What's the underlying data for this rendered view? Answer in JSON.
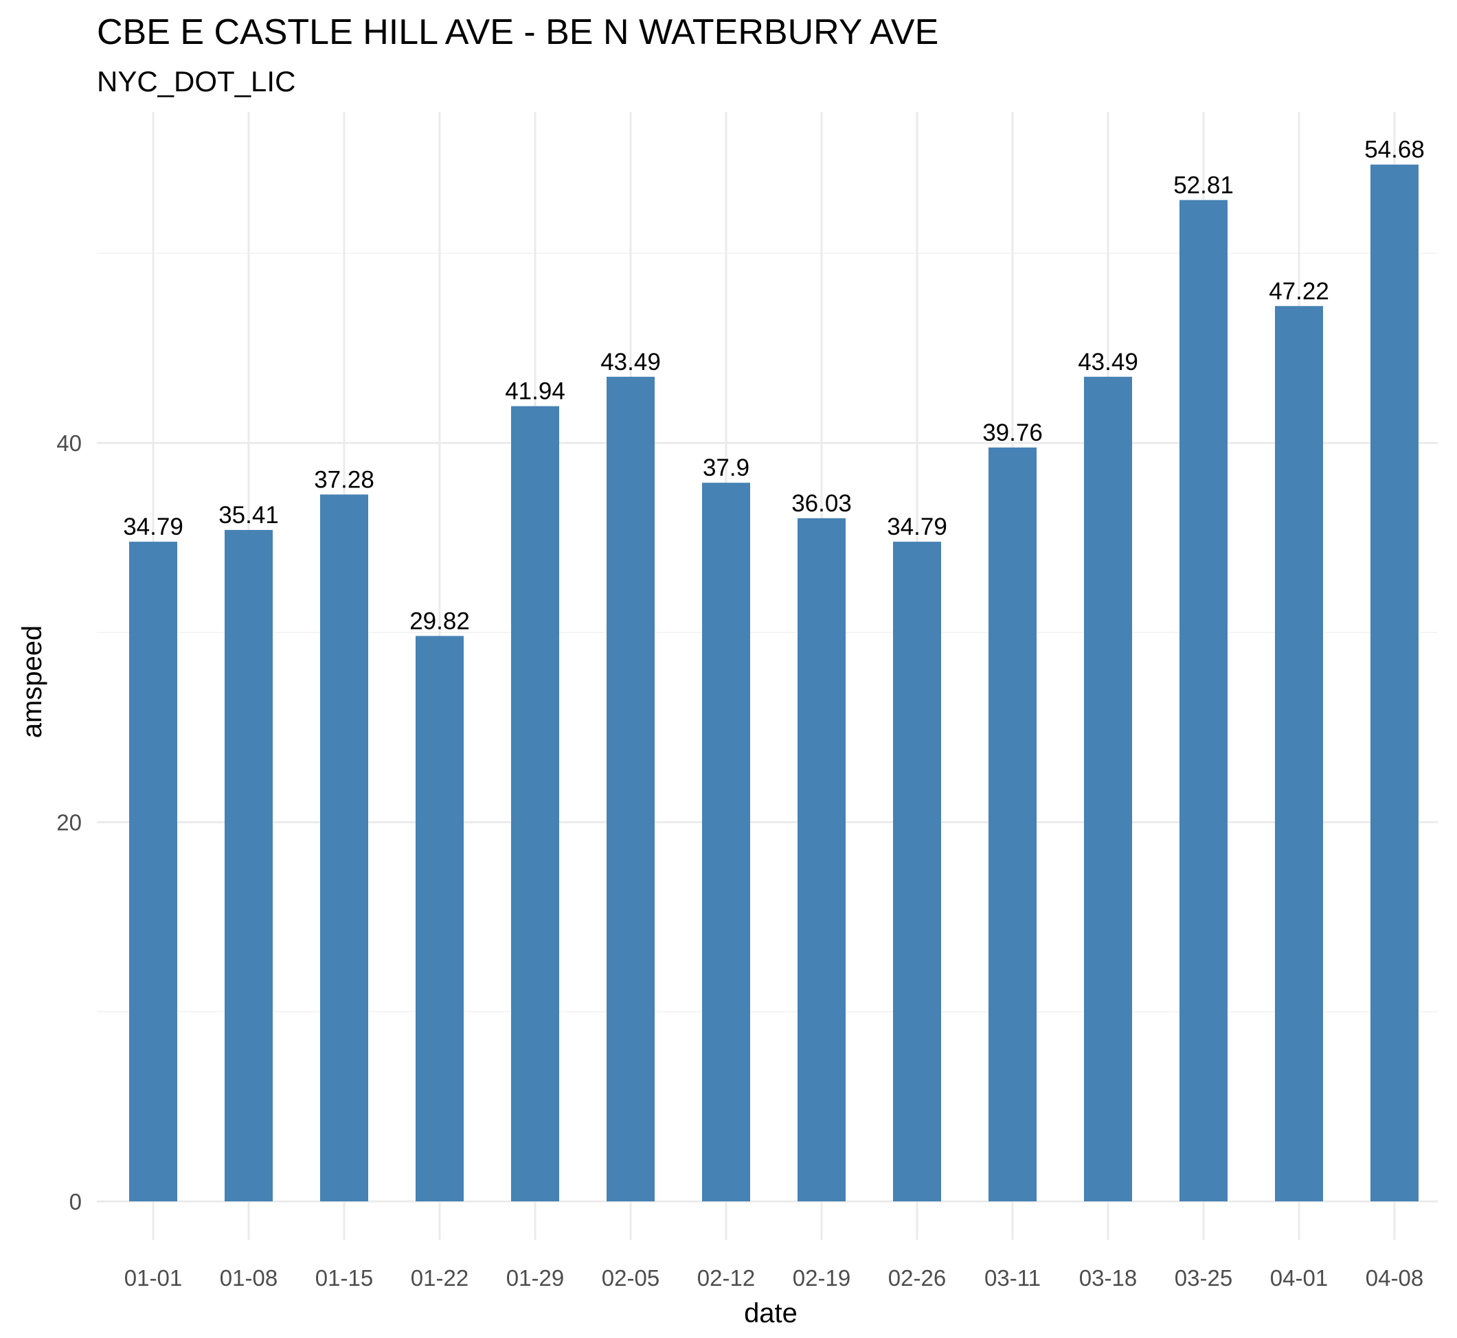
{
  "chart_data": {
    "type": "bar",
    "title": "CBE E CASTLE HILL AVE - BE N WATERBURY AVE",
    "subtitle": "NYC_DOT_LIC",
    "xlabel": "date",
    "ylabel": "amspeed",
    "categories": [
      "01-01",
      "01-08",
      "01-15",
      "01-22",
      "01-29",
      "02-05",
      "02-12",
      "02-19",
      "02-26",
      "03-11",
      "03-18",
      "03-25",
      "04-01",
      "04-08"
    ],
    "values": [
      34.79,
      35.41,
      37.28,
      29.82,
      41.94,
      43.49,
      37.9,
      36.03,
      34.79,
      39.76,
      43.49,
      52.81,
      47.22,
      54.68
    ],
    "data_labels": [
      "34.79",
      "35.41",
      "37.28",
      "29.82",
      "41.94",
      "43.49",
      "37.9",
      "36.03",
      "34.79",
      "39.76",
      "43.49",
      "52.81",
      "47.22",
      "54.68"
    ],
    "ylim": [
      0,
      57.4
    ],
    "yticks": [
      0,
      20,
      40
    ],
    "ytick_labels": [
      "0",
      "20",
      "40"
    ],
    "grid": true,
    "legend": "none",
    "bar_color": "#4682B4"
  }
}
